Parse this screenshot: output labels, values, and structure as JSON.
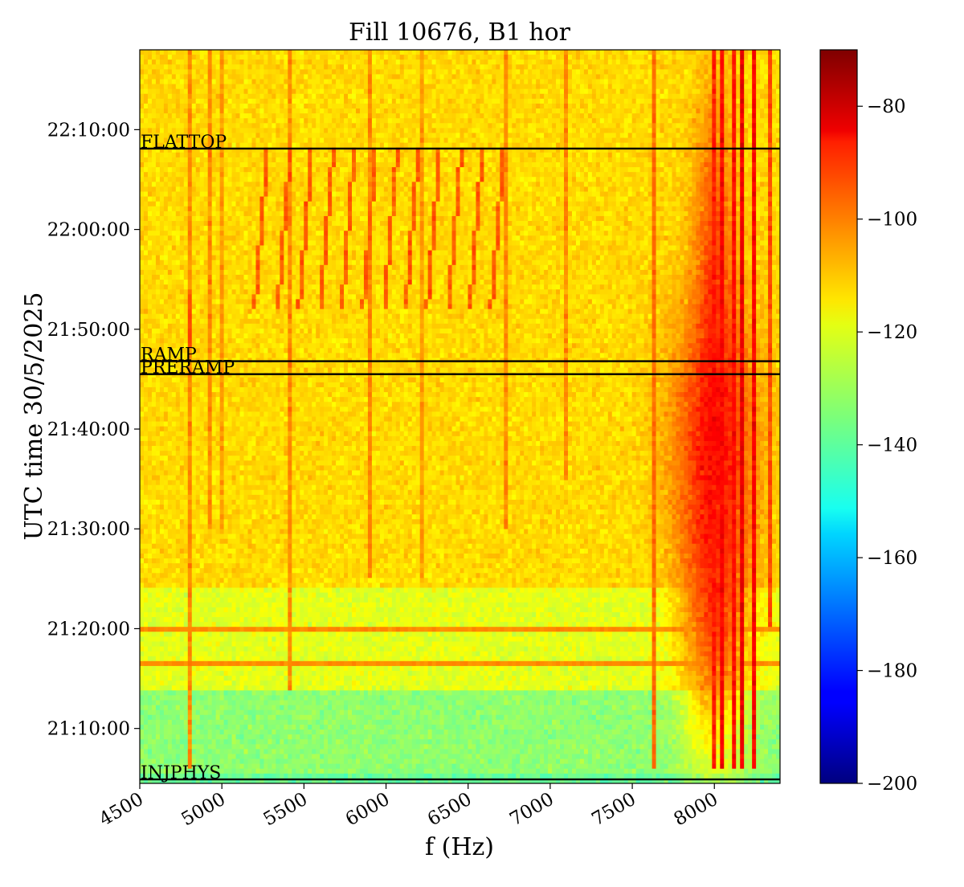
{
  "chart_data": {
    "type": "heatmap",
    "title": "Fill 10676, B1 hor",
    "xlabel": "f (Hz)",
    "ylabel": "UTC time 30/5/2025",
    "xlim": [
      4500,
      8400
    ],
    "ylim_minutes": [
      64.5,
      138
    ],
    "x_ticks": [
      {
        "value": 4500,
        "label": "4500"
      },
      {
        "value": 5000,
        "label": "5000"
      },
      {
        "value": 5500,
        "label": "5500"
      },
      {
        "value": 6000,
        "label": "6000"
      },
      {
        "value": 6500,
        "label": "6500"
      },
      {
        "value": 7000,
        "label": "7000"
      },
      {
        "value": 7500,
        "label": "7500"
      },
      {
        "value": 8000,
        "label": "8000"
      }
    ],
    "y_ticks": [
      {
        "value": 70,
        "label": "21:10:00"
      },
      {
        "value": 80,
        "label": "21:20:00"
      },
      {
        "value": 90,
        "label": "21:30:00"
      },
      {
        "value": 100,
        "label": "21:40:00"
      },
      {
        "value": 110,
        "label": "21:50:00"
      },
      {
        "value": 120,
        "label": "22:00:00"
      },
      {
        "value": 130,
        "label": "22:10:00"
      }
    ],
    "annotations": [
      {
        "label": "FLATTOP",
        "time": 128.1
      },
      {
        "label": "RAMP",
        "time": 106.8
      },
      {
        "label": "PRERAMP",
        "time": 105.5
      },
      {
        "label": "INJPHYS",
        "time": 64.9
      }
    ],
    "colorbar": {
      "colormap": "jet",
      "range": [
        -200,
        -70
      ],
      "ticks": [
        {
          "value": -80,
          "label": "−80"
        },
        {
          "value": -100,
          "label": "−100"
        },
        {
          "value": -120,
          "label": "−120"
        },
        {
          "value": -140,
          "label": "−140"
        },
        {
          "value": -160,
          "label": "−160"
        },
        {
          "value": -180,
          "label": "−180"
        },
        {
          "value": -200,
          "label": "−200"
        }
      ]
    },
    "background_levels": [
      {
        "from": 64.5,
        "to": 65.5,
        "level": -138
      },
      {
        "from": 65.5,
        "to": 74,
        "level": -133
      },
      {
        "from": 74,
        "to": 84,
        "level": -122
      },
      {
        "from": 84,
        "to": 138,
        "level": -114
      }
    ],
    "spectral_lines": [
      {
        "f": 4800,
        "from": 66,
        "to": 138,
        "level": -104
      },
      {
        "f": 4810,
        "from": 108,
        "to": 114,
        "level": -96
      },
      {
        "f": 4920,
        "from": 90,
        "to": 138,
        "level": -104
      },
      {
        "f": 5010,
        "from": 90,
        "to": 138,
        "level": -106
      },
      {
        "f": 5410,
        "from": 74,
        "to": 138,
        "level": -104
      },
      {
        "f": 5900,
        "from": 85,
        "to": 138,
        "level": -103
      },
      {
        "f": 6210,
        "from": 85,
        "to": 138,
        "level": -106
      },
      {
        "f": 6730,
        "from": 90,
        "to": 138,
        "level": -104
      },
      {
        "f": 7100,
        "from": 95,
        "to": 138,
        "level": -104
      },
      {
        "f": 7640,
        "from": 66,
        "to": 138,
        "level": -100
      },
      {
        "f": 8000,
        "from": 66,
        "to": 138,
        "level": -90
      },
      {
        "f": 8050,
        "from": 66,
        "to": 138,
        "level": -86
      },
      {
        "f": 8110,
        "from": 66,
        "to": 138,
        "level": -88
      },
      {
        "f": 8170,
        "from": 66,
        "to": 138,
        "level": -84
      },
      {
        "f": 8240,
        "from": 66,
        "to": 138,
        "level": -86
      },
      {
        "f": 8330,
        "from": 80,
        "to": 138,
        "level": -96
      }
    ],
    "sweeping_lines": {
      "start_time": 112,
      "end_time": 128,
      "levels": -98,
      "start_freqs": [
        5200,
        5340,
        5470,
        5600,
        5730,
        5860,
        5990,
        6120,
        6250,
        6380,
        6510,
        6640
      ],
      "shift_hz": 260
    },
    "horizontal_artifacts": [
      {
        "time": 76.7,
        "level": -104
      },
      {
        "time": 79.9,
        "level": -104
      }
    ],
    "hotspots": [
      {
        "f": 8000,
        "t": 100,
        "sf": 260,
        "st": 14,
        "level": -92
      },
      {
        "f": 8000,
        "t": 82,
        "sf": 200,
        "st": 14,
        "level": -98
      },
      {
        "f": 8000,
        "t": 120,
        "sf": 120,
        "st": 14,
        "level": -98
      }
    ]
  }
}
